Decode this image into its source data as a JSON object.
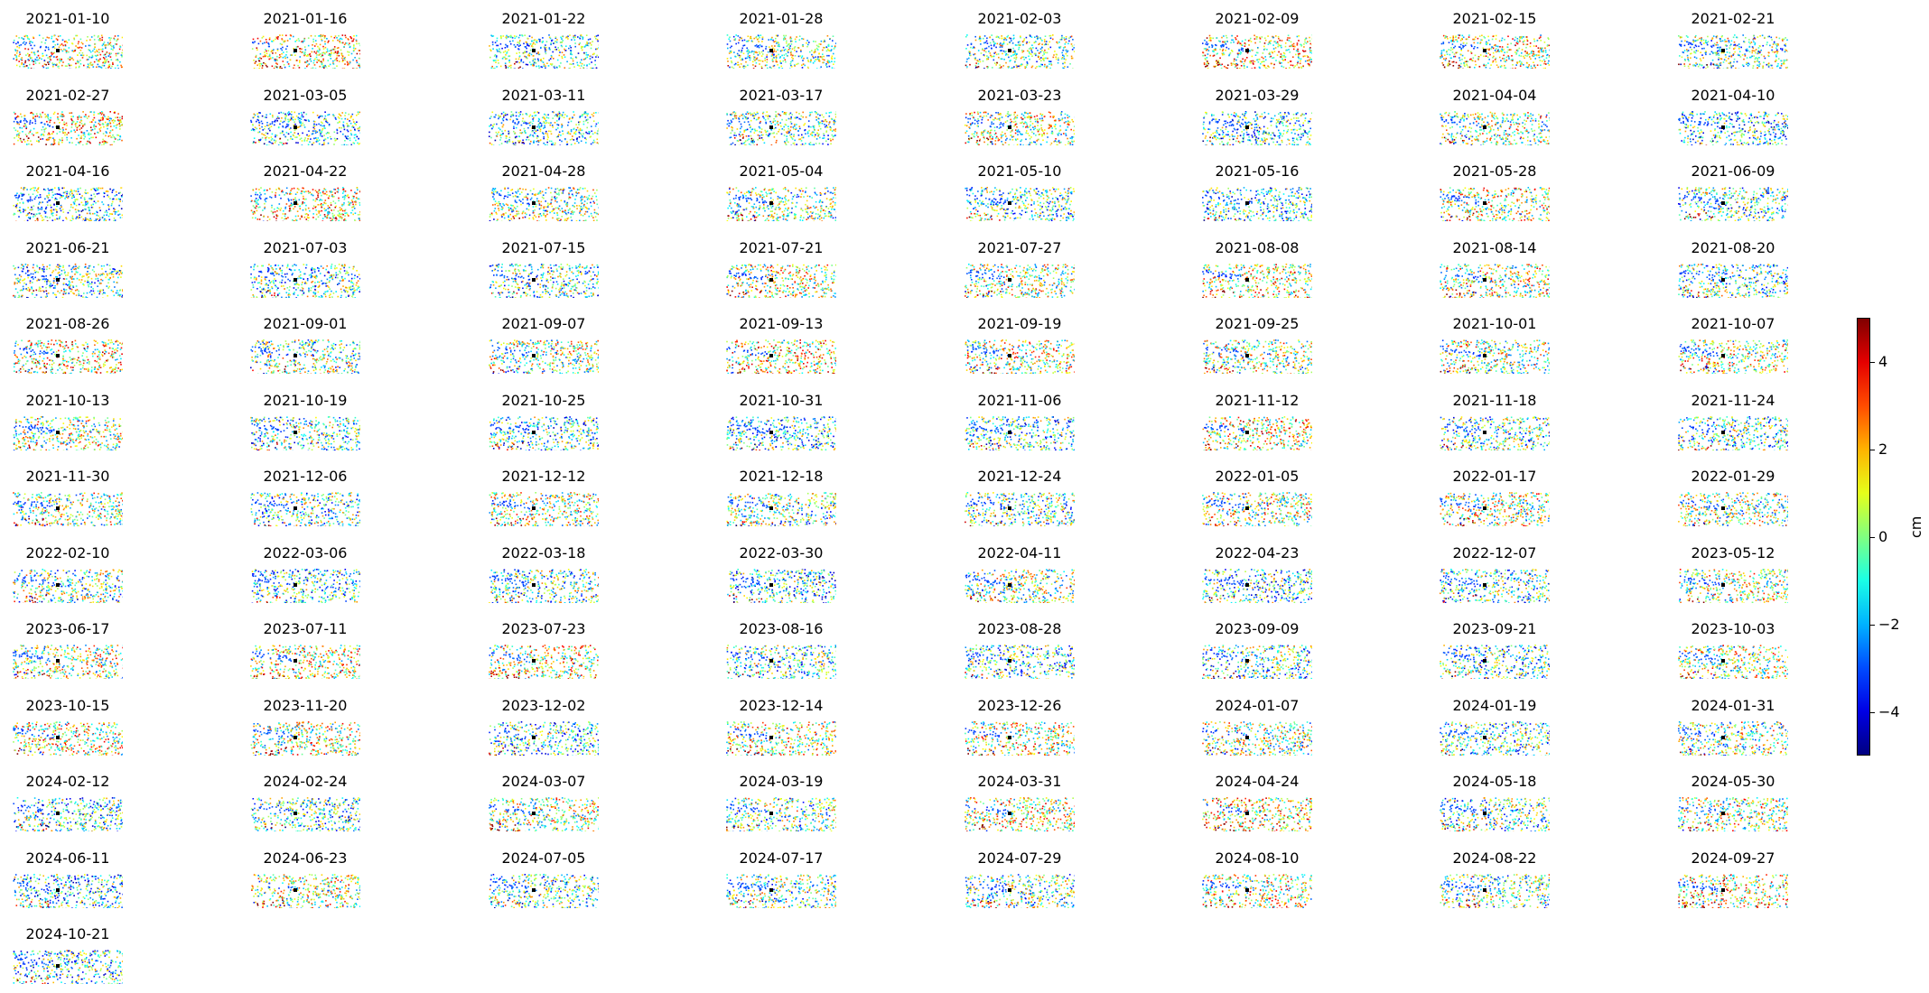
{
  "chart_data": {
    "type": "scatter",
    "layout": "small-multiples",
    "colormap": "jet",
    "colorbar": {
      "label": "cm",
      "ticks": [
        4,
        2,
        0,
        -2,
        -4
      ],
      "tick_labels": [
        "4",
        "2",
        "0",
        "−2",
        "−4"
      ],
      "vmin": -5,
      "vmax": 5
    },
    "panels": [
      {
        "date": "2021-01-10"
      },
      {
        "date": "2021-01-16"
      },
      {
        "date": "2021-01-22"
      },
      {
        "date": "2021-01-28"
      },
      {
        "date": "2021-02-03"
      },
      {
        "date": "2021-02-09"
      },
      {
        "date": "2021-02-15"
      },
      {
        "date": "2021-02-21"
      },
      {
        "date": "2021-02-27"
      },
      {
        "date": "2021-03-05"
      },
      {
        "date": "2021-03-11"
      },
      {
        "date": "2021-03-17"
      },
      {
        "date": "2021-03-23"
      },
      {
        "date": "2021-03-29"
      },
      {
        "date": "2021-04-04"
      },
      {
        "date": "2021-04-10"
      },
      {
        "date": "2021-04-16"
      },
      {
        "date": "2021-04-22"
      },
      {
        "date": "2021-04-28"
      },
      {
        "date": "2021-05-04"
      },
      {
        "date": "2021-05-10"
      },
      {
        "date": "2021-05-16"
      },
      {
        "date": "2021-05-28"
      },
      {
        "date": "2021-06-09"
      },
      {
        "date": "2021-06-21"
      },
      {
        "date": "2021-07-03"
      },
      {
        "date": "2021-07-15"
      },
      {
        "date": "2021-07-21"
      },
      {
        "date": "2021-07-27"
      },
      {
        "date": "2021-08-08"
      },
      {
        "date": "2021-08-14"
      },
      {
        "date": "2021-08-20"
      },
      {
        "date": "2021-08-26"
      },
      {
        "date": "2021-09-01"
      },
      {
        "date": "2021-09-07"
      },
      {
        "date": "2021-09-13"
      },
      {
        "date": "2021-09-19"
      },
      {
        "date": "2021-09-25"
      },
      {
        "date": "2021-10-01"
      },
      {
        "date": "2021-10-07"
      },
      {
        "date": "2021-10-13"
      },
      {
        "date": "2021-10-19"
      },
      {
        "date": "2021-10-25"
      },
      {
        "date": "2021-10-31"
      },
      {
        "date": "2021-11-06"
      },
      {
        "date": "2021-11-12"
      },
      {
        "date": "2021-11-18"
      },
      {
        "date": "2021-11-24"
      },
      {
        "date": "2021-11-30"
      },
      {
        "date": "2021-12-06"
      },
      {
        "date": "2021-12-12"
      },
      {
        "date": "2021-12-18"
      },
      {
        "date": "2021-12-24"
      },
      {
        "date": "2022-01-05"
      },
      {
        "date": "2022-01-17"
      },
      {
        "date": "2022-01-29"
      },
      {
        "date": "2022-02-10"
      },
      {
        "date": "2022-03-06"
      },
      {
        "date": "2022-03-18"
      },
      {
        "date": "2022-03-30"
      },
      {
        "date": "2022-04-11"
      },
      {
        "date": "2022-04-23"
      },
      {
        "date": "2022-12-07"
      },
      {
        "date": "2023-05-12"
      },
      {
        "date": "2023-06-17"
      },
      {
        "date": "2023-07-11"
      },
      {
        "date": "2023-07-23"
      },
      {
        "date": "2023-08-16"
      },
      {
        "date": "2023-08-28"
      },
      {
        "date": "2023-09-09"
      },
      {
        "date": "2023-09-21"
      },
      {
        "date": "2023-10-03"
      },
      {
        "date": "2023-10-15"
      },
      {
        "date": "2023-11-20"
      },
      {
        "date": "2023-12-02"
      },
      {
        "date": "2023-12-14"
      },
      {
        "date": "2023-12-26"
      },
      {
        "date": "2024-01-07"
      },
      {
        "date": "2024-01-19"
      },
      {
        "date": "2024-01-31"
      },
      {
        "date": "2024-02-12"
      },
      {
        "date": "2024-02-24"
      },
      {
        "date": "2024-03-07"
      },
      {
        "date": "2024-03-19"
      },
      {
        "date": "2024-03-31"
      },
      {
        "date": "2024-04-24"
      },
      {
        "date": "2024-05-18"
      },
      {
        "date": "2024-05-30"
      },
      {
        "date": "2024-06-11"
      },
      {
        "date": "2024-06-23"
      },
      {
        "date": "2024-07-05"
      },
      {
        "date": "2024-07-17"
      },
      {
        "date": "2024-07-29"
      },
      {
        "date": "2024-08-10"
      },
      {
        "date": "2024-08-22"
      },
      {
        "date": "2024-09-27"
      },
      {
        "date": "2024-10-21"
      }
    ]
  }
}
